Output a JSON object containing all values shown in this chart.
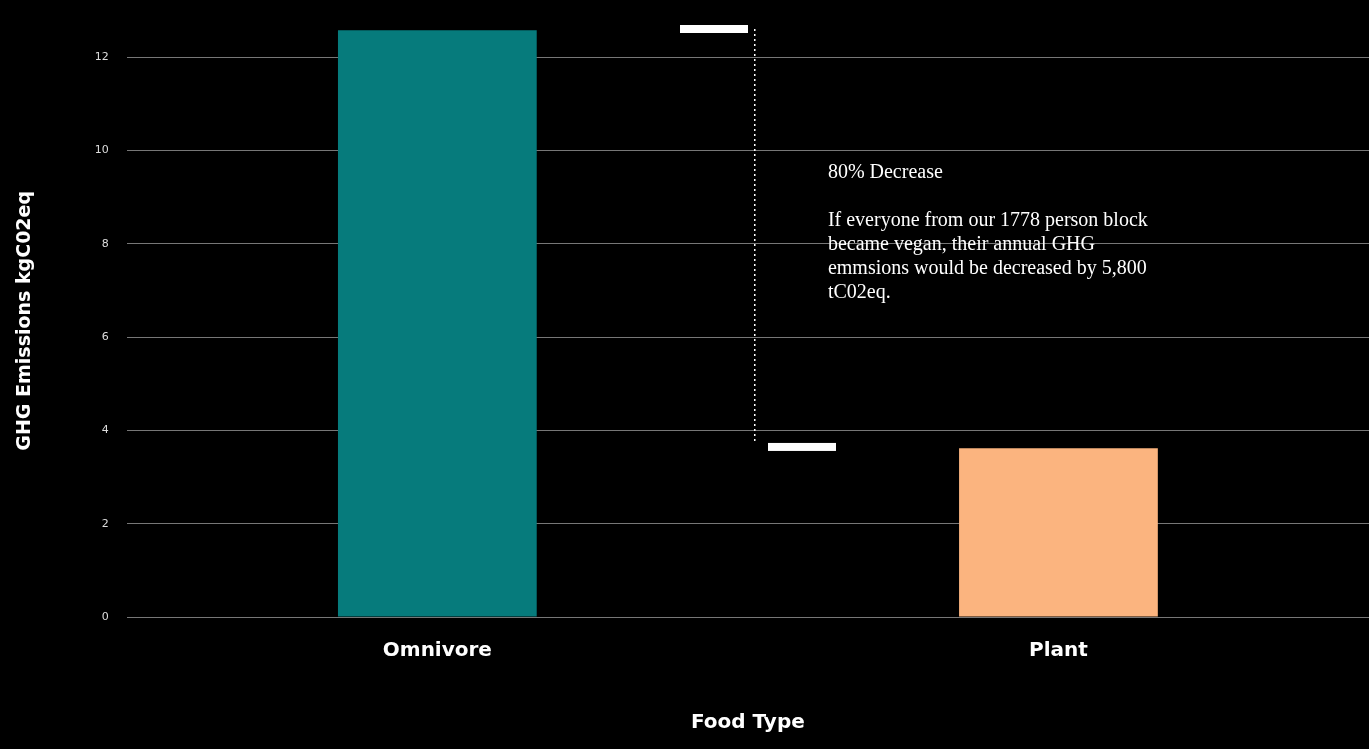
{
  "chart_data": {
    "type": "bar",
    "xlabel": "Food Type",
    "ylabel": "GHG Emissions kgC02eq",
    "categories": [
      "Omnivore",
      "Plant"
    ],
    "values": [
      12.58,
      3.62
    ],
    "colors": [
      "#067b7c",
      "#fbb47f"
    ],
    "ylim": [
      0,
      12.7
    ],
    "yticks": [
      0,
      2,
      4,
      6,
      8,
      10,
      12
    ],
    "grid": "y",
    "legend": false,
    "annotations": [
      "80% Decrease",
      "If everyone from our 1778 person block became vegan, their annual GHG emmsions would be decreased by 5,800 tC02eq."
    ]
  }
}
